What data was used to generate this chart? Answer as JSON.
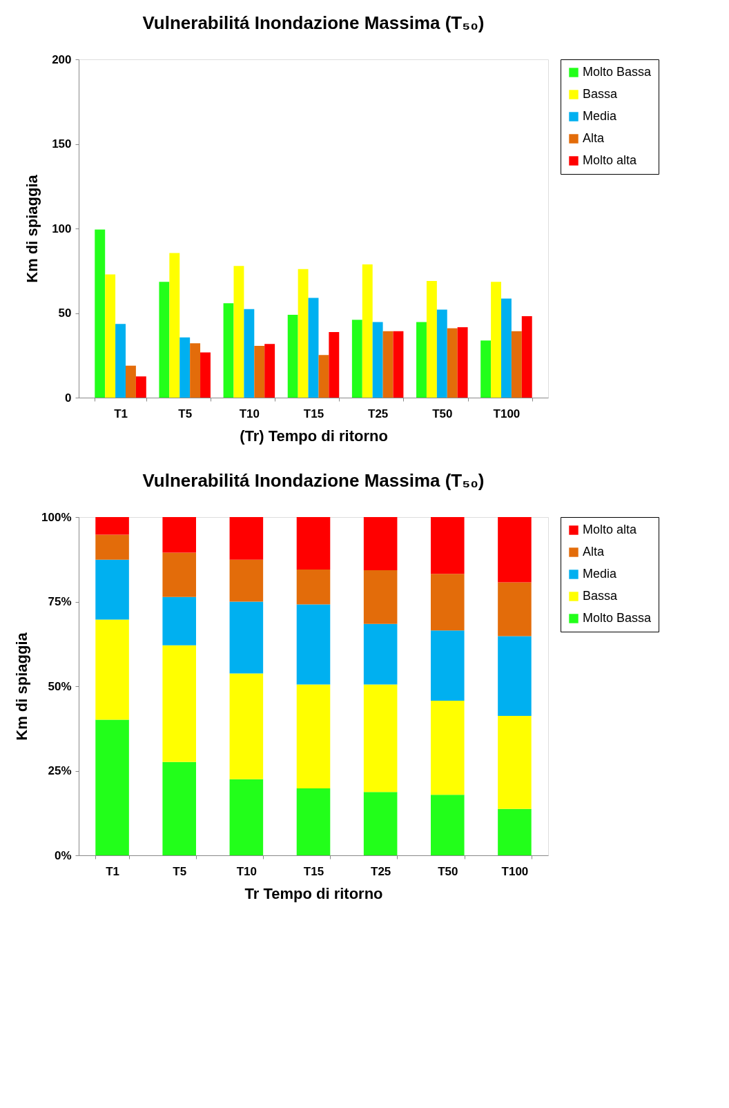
{
  "chart_data": [
    {
      "type": "bar",
      "title": "Vulnerabilitá Inondazione Massima (T₅₀)",
      "xlabel": "(Tr) Tempo di ritorno",
      "ylabel": "Km  di  spiaggia",
      "categories": [
        "T1",
        "T5",
        "T10",
        "T15",
        "T25",
        "T50",
        "T100"
      ],
      "series": [
        {
          "name": "Molto Bassa",
          "color": "#22ff1a",
          "values": [
            99.4,
            68.5,
            55.8,
            49,
            46,
            44.7,
            33.8
          ]
        },
        {
          "name": "Bassa",
          "color": "#ffff00",
          "values": [
            72.9,
            85.5,
            77.9,
            76,
            78.8,
            69,
            68.5
          ]
        },
        {
          "name": "Media",
          "color": "#00b0f0",
          "values": [
            43.6,
            35.6,
            52.3,
            59,
            44.7,
            52,
            58.6
          ]
        },
        {
          "name": "Alta",
          "color": "#e36c0a",
          "values": [
            18.9,
            32.1,
            30.6,
            25.2,
            39.3,
            41,
            39.3
          ]
        },
        {
          "name": "Molto alta",
          "color": "#ff0000",
          "values": [
            12.6,
            26.7,
            31.7,
            38.8,
            39.3,
            41.6,
            48.2
          ]
        }
      ],
      "ylim": [
        0,
        200
      ],
      "yticks": [
        0,
        50,
        100,
        150,
        200
      ],
      "grid": false,
      "legend": "right"
    },
    {
      "type": "bar",
      "stacked": true,
      "title": "Vulnerabilitá Inondazione Massima (T₅₀)",
      "xlabel": "Tr Tempo di  ritorno",
      "ylabel": "Km  di  spiaggia",
      "categories": [
        "T1",
        "T5",
        "T10",
        "T15",
        "T25",
        "T50",
        "T100"
      ],
      "series": [
        {
          "name": "Molto Bassa",
          "color": "#22ff1a",
          "values": [
            40.1,
            27.6,
            22.5,
            19.8,
            18.7,
            17.9,
            13.7
          ]
        },
        {
          "name": "Bassa",
          "color": "#ffff00",
          "values": [
            29.6,
            34.5,
            31.3,
            30.7,
            31.8,
            27.8,
            27.5
          ]
        },
        {
          "name": "Media",
          "color": "#00b0f0",
          "values": [
            17.7,
            14.3,
            21.2,
            23.7,
            17.9,
            20.8,
            23.6
          ]
        },
        {
          "name": "Alta",
          "color": "#e36c0a",
          "values": [
            7.4,
            13.1,
            12.4,
            10.3,
            15.9,
            16.7,
            15.9
          ]
        },
        {
          "name": "Molto alta",
          "color": "#ff0000",
          "values": [
            5.2,
            10.5,
            12.6,
            15.5,
            15.7,
            16.8,
            19.3
          ]
        }
      ],
      "ylim": [
        0,
        100
      ],
      "yticks": [
        {
          "value": 0,
          "label": "0%"
        },
        {
          "value": 25,
          "label": "25%"
        },
        {
          "value": 50,
          "label": "50%"
        },
        {
          "value": 75,
          "label": "75%"
        },
        {
          "value": 100,
          "label": "100%"
        }
      ],
      "grid": false,
      "legend": "right"
    }
  ]
}
